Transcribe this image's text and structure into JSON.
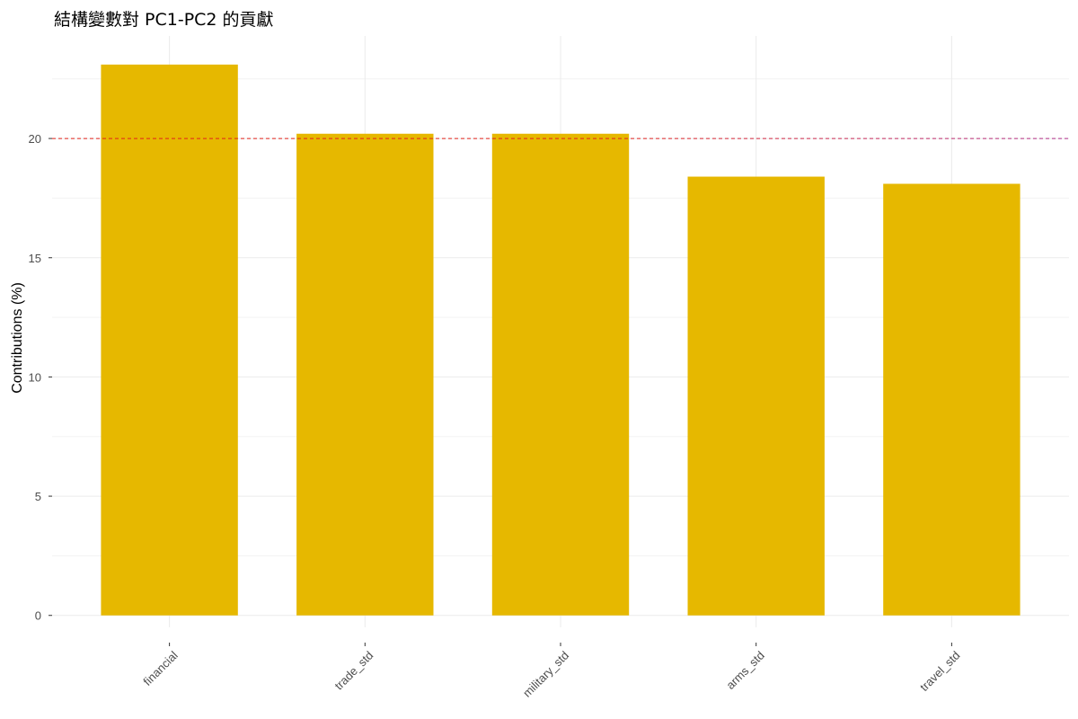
{
  "chart_data": {
    "type": "bar",
    "title": "結構變數對 PC1-PC2 的貢獻",
    "xlabel": "",
    "ylabel": "Contributions (%)",
    "categories": [
      "financial",
      "trade_std",
      "military_std",
      "arms_std",
      "travel_std"
    ],
    "values": [
      23.1,
      20.2,
      20.2,
      18.4,
      18.1
    ],
    "ylim": [
      -0.5,
      24.3
    ],
    "yticks": [
      0,
      5,
      10,
      15,
      20
    ],
    "yticks_labels": [
      "0",
      "5",
      "10",
      "15",
      "20"
    ],
    "reference_line": {
      "y": 20,
      "style": "dashed"
    },
    "grid": true,
    "legend": "none",
    "x_tick_rotation_deg": 45
  },
  "colors": {
    "bar_fill": "#E6B800",
    "reference_line": "#B0308C",
    "reference_line_center": "#E2231A",
    "grid": "#ebebeb",
    "background": "#ffffff"
  }
}
